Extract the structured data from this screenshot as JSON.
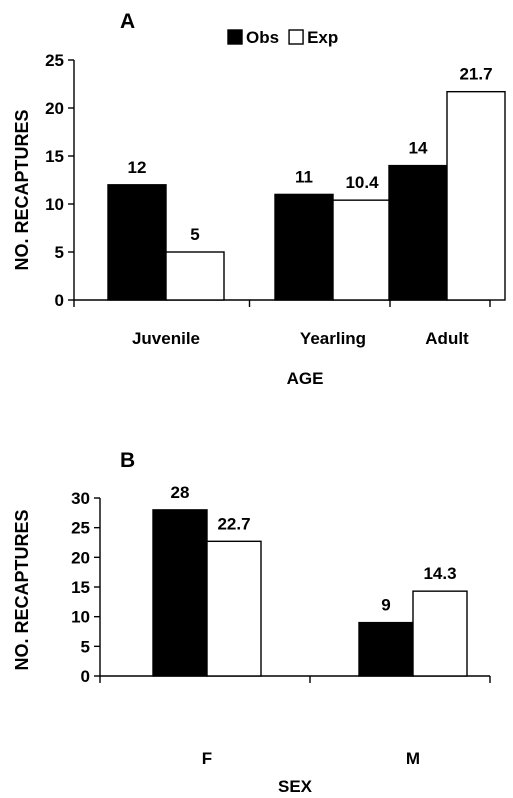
{
  "chart_data": [
    {
      "type": "bar",
      "panel": "A",
      "xlabel": "AGE",
      "ylabel": "NO. RECAPTURES",
      "ylim": [
        0,
        25
      ],
      "yticks": [
        "0",
        "5",
        "10",
        "15",
        "20",
        "25"
      ],
      "categories": [
        "Juvenile",
        "Yearling",
        "Adult"
      ],
      "legend": {
        "placement": "top",
        "entries": [
          "Obs",
          "Exp"
        ]
      },
      "series": [
        {
          "name": "Obs",
          "color": "#000000",
          "values": [
            12,
            11,
            14
          ],
          "labels": [
            "12",
            "11",
            "14"
          ]
        },
        {
          "name": "Exp",
          "color": "#ffffff",
          "values": [
            5,
            10.4,
            21.7
          ],
          "labels": [
            "5",
            "10.4",
            "21.7"
          ]
        }
      ]
    },
    {
      "type": "bar",
      "panel": "B",
      "xlabel": "SEX",
      "ylabel": "NO. RECAPTURES",
      "ylim": [
        0,
        30
      ],
      "yticks": [
        "0",
        "5",
        "10",
        "15",
        "20",
        "25",
        "30"
      ],
      "categories": [
        "F",
        "M"
      ],
      "series": [
        {
          "name": "Obs",
          "color": "#000000",
          "values": [
            28,
            9
          ],
          "labels": [
            "28",
            "9"
          ]
        },
        {
          "name": "Exp",
          "color": "#ffffff",
          "values": [
            22.7,
            14.3
          ],
          "labels": [
            "22.7",
            "14.3"
          ]
        }
      ]
    }
  ]
}
